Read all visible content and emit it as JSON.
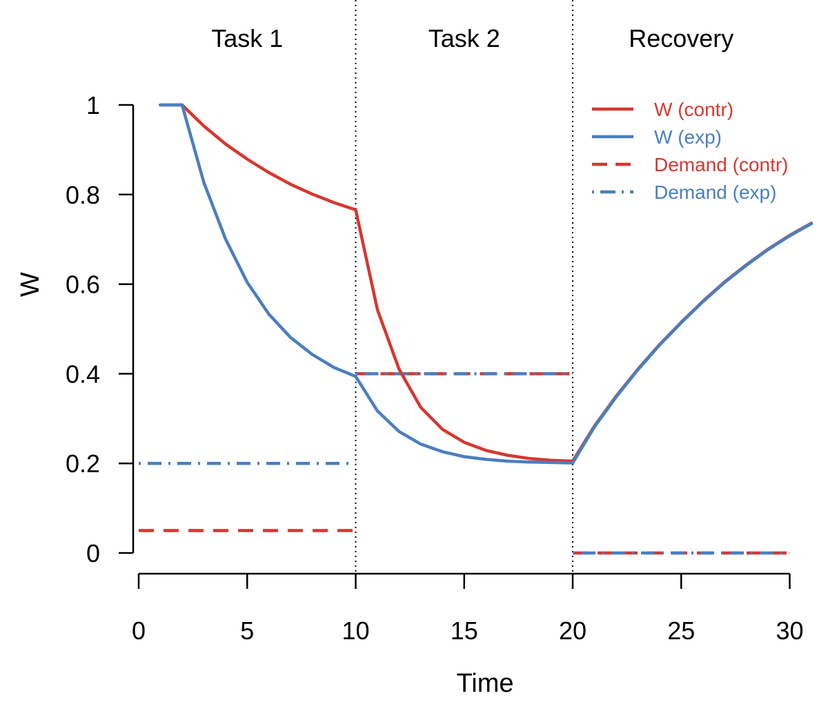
{
  "chart_data": {
    "type": "line",
    "xlabel": "Time",
    "ylabel": "W",
    "xlim": [
      0,
      31
    ],
    "ylim": [
      0,
      1
    ],
    "x_ticks": [
      0,
      5,
      10,
      15,
      20,
      25,
      30
    ],
    "y_ticks": [
      0,
      0.2,
      0.4,
      0.6,
      0.8,
      1
    ],
    "y_tick_labels": [
      "0",
      "0.2",
      "0.4",
      "0.6",
      "0.8",
      "1"
    ],
    "phase_boundaries": [
      10,
      20
    ],
    "phases": [
      {
        "label": "Task 1",
        "center": 5
      },
      {
        "label": "Task 2",
        "center": 15
      },
      {
        "label": "Recovery",
        "center": 25
      }
    ],
    "legend_position": "top-right",
    "series": [
      {
        "name": "W (contr)",
        "color": "#d7372f",
        "style": "solid",
        "points": [
          [
            1,
            1.0
          ],
          [
            2,
            1.0
          ],
          [
            3,
            0.953
          ],
          [
            4,
            0.913
          ],
          [
            5,
            0.879
          ],
          [
            6,
            0.849
          ],
          [
            7,
            0.823
          ],
          [
            8,
            0.801
          ],
          [
            9,
            0.782
          ],
          [
            10,
            0.766
          ],
          [
            11,
            0.543
          ],
          [
            12,
            0.41
          ],
          [
            13,
            0.325
          ],
          [
            14,
            0.276
          ],
          [
            15,
            0.247
          ],
          [
            16,
            0.229
          ],
          [
            17,
            0.218
          ],
          [
            18,
            0.211
          ],
          [
            19,
            0.207
          ],
          [
            20,
            0.205
          ],
          [
            21,
            0.283
          ],
          [
            22,
            0.35
          ],
          [
            23,
            0.41
          ],
          [
            24,
            0.465
          ],
          [
            25,
            0.515
          ],
          [
            26,
            0.562
          ],
          [
            27,
            0.605
          ],
          [
            28,
            0.643
          ],
          [
            29,
            0.678
          ],
          [
            30,
            0.709
          ],
          [
            31,
            0.736
          ]
        ]
      },
      {
        "name": "W (exp)",
        "color": "#4a7fbf",
        "style": "solid",
        "points": [
          [
            1,
            1.0
          ],
          [
            2,
            1.0
          ],
          [
            3,
            0.827
          ],
          [
            4,
            0.701
          ],
          [
            5,
            0.604
          ],
          [
            6,
            0.533
          ],
          [
            7,
            0.481
          ],
          [
            8,
            0.443
          ],
          [
            9,
            0.414
          ],
          [
            10,
            0.394
          ],
          [
            11,
            0.317
          ],
          [
            12,
            0.271
          ],
          [
            13,
            0.243
          ],
          [
            14,
            0.226
          ],
          [
            15,
            0.215
          ],
          [
            16,
            0.209
          ],
          [
            17,
            0.205
          ],
          [
            18,
            0.203
          ],
          [
            19,
            0.202
          ],
          [
            20,
            0.201
          ],
          [
            21,
            0.281
          ],
          [
            22,
            0.348
          ],
          [
            23,
            0.409
          ],
          [
            24,
            0.464
          ],
          [
            25,
            0.514
          ],
          [
            26,
            0.561
          ],
          [
            27,
            0.604
          ],
          [
            28,
            0.642
          ],
          [
            29,
            0.677
          ],
          [
            30,
            0.708
          ],
          [
            31,
            0.735
          ]
        ]
      },
      {
        "name": "Demand (contr)",
        "color": "#d7372f",
        "style": "dashed",
        "segments": [
          {
            "x": [
              0,
              10
            ],
            "y": 0.05
          },
          {
            "x": [
              10,
              20
            ],
            "y": 0.4
          },
          {
            "x": [
              20,
              30
            ],
            "y": 0.0
          }
        ]
      },
      {
        "name": "Demand (exp)",
        "color": "#4a7fbf",
        "style": "dotdash",
        "segments": [
          {
            "x": [
              0,
              10
            ],
            "y": 0.2
          },
          {
            "x": [
              10,
              20
            ],
            "y": 0.4
          },
          {
            "x": [
              20,
              30
            ],
            "y": 0.0
          }
        ]
      }
    ]
  }
}
